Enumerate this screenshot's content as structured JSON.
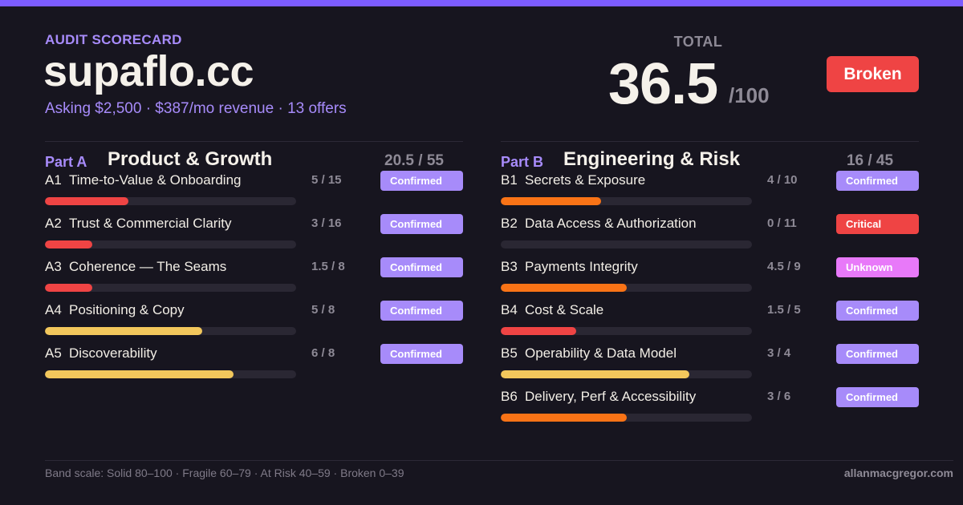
{
  "header": {
    "eyebrow": "AUDIT SCORECARD",
    "site": "supaflo.cc",
    "subline": "Asking $2,500 · $387/mo revenue · 13 offers"
  },
  "total": {
    "label": "TOTAL",
    "score": "36.5",
    "max": "/100",
    "band": "Broken"
  },
  "colors": {
    "accent": "#a78bfa",
    "topbar": "#7c5cff",
    "background": "#17151f",
    "bar_red": "#ef4444",
    "bar_orange": "#f97316",
    "bar_yellow": "#f2c75c",
    "badge_confirmed": "#a78bfa",
    "badge_critical": "#ef4444",
    "badge_unknown": "#e879f9"
  },
  "sections": [
    {
      "part": "Part A",
      "title": "Product & Growth",
      "score": "20.5 / 55",
      "criteria": [
        {
          "code": "A1",
          "name": "Time-to-Value & Onboarding",
          "score": "5 / 15",
          "status": "Confirmed",
          "fraction": 0.333,
          "bar_color": "red"
        },
        {
          "code": "A2",
          "name": "Trust & Commercial Clarity",
          "score": "3 / 16",
          "status": "Confirmed",
          "fraction": 0.1875,
          "bar_color": "red"
        },
        {
          "code": "A3",
          "name": "Coherence — The Seams",
          "score": "1.5 / 8",
          "status": "Confirmed",
          "fraction": 0.1875,
          "bar_color": "red"
        },
        {
          "code": "A4",
          "name": "Positioning & Copy",
          "score": "5 / 8",
          "status": "Confirmed",
          "fraction": 0.625,
          "bar_color": "yellow"
        },
        {
          "code": "A5",
          "name": "Discoverability",
          "score": "6 / 8",
          "status": "Confirmed",
          "fraction": 0.75,
          "bar_color": "yellow"
        }
      ]
    },
    {
      "part": "Part B",
      "title": "Engineering & Risk",
      "score": "16 / 45",
      "criteria": [
        {
          "code": "B1",
          "name": "Secrets & Exposure",
          "score": "4 / 10",
          "status": "Confirmed",
          "fraction": 0.4,
          "bar_color": "orange"
        },
        {
          "code": "B2",
          "name": "Data Access & Authorization",
          "score": "0 / 11",
          "status": "Critical",
          "fraction": 0,
          "bar_color": "red"
        },
        {
          "code": "B3",
          "name": "Payments Integrity",
          "score": "4.5 / 9",
          "status": "Unknown",
          "fraction": 0.5,
          "bar_color": "orange"
        },
        {
          "code": "B4",
          "name": "Cost & Scale",
          "score": "1.5 / 5",
          "status": "Confirmed",
          "fraction": 0.3,
          "bar_color": "red"
        },
        {
          "code": "B5",
          "name": "Operability & Data Model",
          "score": "3 / 4",
          "status": "Confirmed",
          "fraction": 0.75,
          "bar_color": "yellow"
        },
        {
          "code": "B6",
          "name": "Delivery, Perf & Accessibility",
          "score": "3 / 6",
          "status": "Confirmed",
          "fraction": 0.5,
          "bar_color": "orange"
        }
      ]
    }
  ],
  "footer": {
    "band_scale": "Band scale: Solid 80–100 · Fragile 60–79 · At Risk 40–59 · Broken 0–39",
    "credit": "allanmacgregor.com"
  }
}
